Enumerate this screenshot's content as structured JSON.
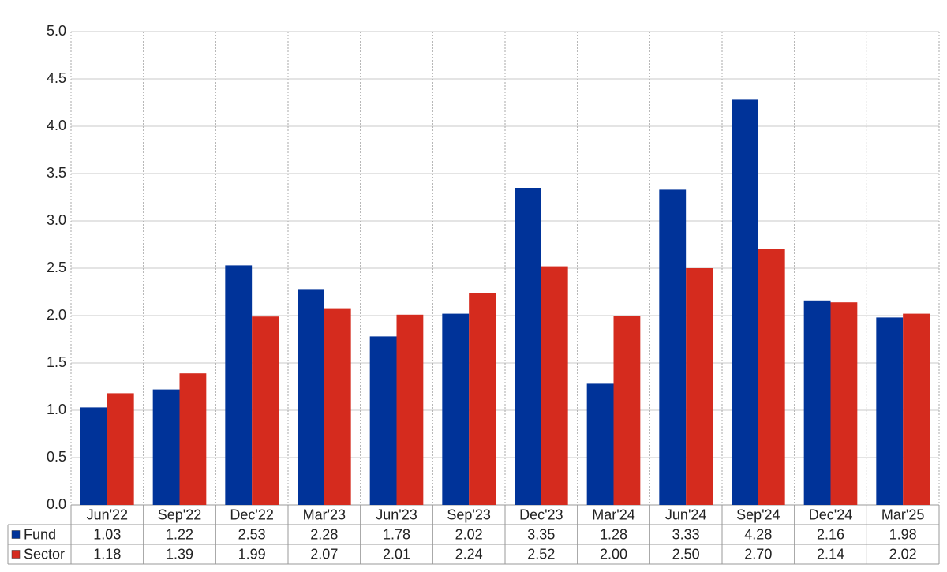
{
  "chart_data": {
    "type": "bar",
    "categories": [
      "Jun'22",
      "Sep'22",
      "Dec'22",
      "Mar'23",
      "Jun'23",
      "Sep'23",
      "Dec'23",
      "Mar'24",
      "Jun'24",
      "Sep'24",
      "Dec'24",
      "Mar'25"
    ],
    "series": [
      {
        "name": "Fund",
        "color": "#003399",
        "values": [
          1.03,
          1.22,
          2.53,
          2.28,
          1.78,
          2.02,
          3.35,
          1.28,
          3.33,
          4.28,
          2.16,
          1.98
        ],
        "value_labels": [
          "1.03",
          "1.22",
          "2.53",
          "2.28",
          "1.78",
          "2.02",
          "3.35",
          "1.28",
          "3.33",
          "4.28",
          "2.16",
          "1.98"
        ]
      },
      {
        "name": "Sector",
        "color": "#d52b1e",
        "values": [
          1.18,
          1.39,
          1.99,
          2.07,
          2.01,
          2.24,
          2.52,
          2.0,
          2.5,
          2.7,
          2.14,
          2.02
        ],
        "value_labels": [
          "1.18",
          "1.39",
          "1.99",
          "2.07",
          "2.01",
          "2.24",
          "2.52",
          "2.00",
          "2.50",
          "2.70",
          "2.14",
          "2.02"
        ]
      }
    ],
    "ylim": [
      0,
      5
    ],
    "yticks": [
      {
        "value": 0,
        "label": "0.0"
      },
      0.5,
      {
        "value": 1,
        "label": "1.0"
      },
      1.5,
      {
        "value": 2,
        "label": "2.0"
      },
      2.5,
      {
        "value": 3,
        "label": "3.0"
      },
      3.5,
      {
        "value": 4,
        "label": "4.0"
      },
      4.5,
      {
        "value": 5,
        "label": "5.0"
      }
    ],
    "grid": true
  }
}
